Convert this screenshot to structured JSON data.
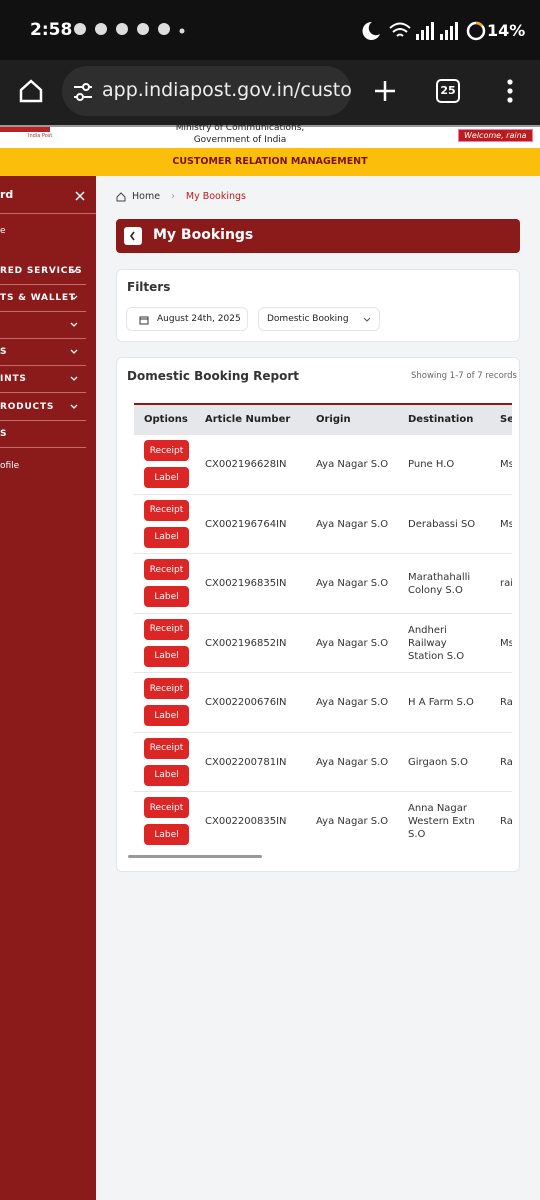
{
  "status_bar": {
    "time": "2:58",
    "battery": "14%"
  },
  "browser": {
    "url": "app.indiapost.gov.in/custome",
    "tab_count": "25"
  },
  "header": {
    "logo_text": "India Post",
    "ministry_line1": "Ministry of Communications,",
    "ministry_line2": "Government of India",
    "welcome": "Welcome, raina",
    "banner": "CUSTOMER RELATION MANAGEMENT"
  },
  "sidebar": {
    "items": [
      "rd",
      "e",
      "RED SERVICES",
      "TS & WALLET",
      "S",
      "INTS",
      "RODUCTS",
      "S",
      "ofile"
    ]
  },
  "breadcrumb": {
    "home": "Home",
    "current": "My Bookings"
  },
  "page_title": "My Bookings",
  "filters": {
    "title": "Filters",
    "date": "August 24th, 2025",
    "booking_type": "Domestic Booking"
  },
  "report": {
    "title": "Domestic Booking Report",
    "summary": "Showing 1-7 of 7 records",
    "columns": [
      "Options",
      "Article Number",
      "Origin",
      "Destination",
      "Se"
    ],
    "buttons": [
      "Receipt",
      "Label"
    ],
    "rows": [
      [
        "CX002196628IN",
        "Aya Nagar S.O",
        "Pune H.O",
        "Ms"
      ],
      [
        "CX002196764IN",
        "Aya Nagar S.O",
        "Derabassi SO",
        "Ms"
      ],
      [
        "CX002196835IN",
        "Aya Nagar S.O",
        "Marathahalli Colony S.O",
        "rai"
      ],
      [
        "CX002196852IN",
        "Aya Nagar S.O",
        "Andheri Railway Station S.O",
        "Ms"
      ],
      [
        "CX002200676IN",
        "Aya Nagar S.O",
        "H A Farm S.O",
        "Ra"
      ],
      [
        "CX002200781IN",
        "Aya Nagar S.O",
        "Girgaon S.O",
        "Ra"
      ],
      [
        "CX002200835IN",
        "Aya Nagar S.O",
        "Anna Nagar Western Extn S.O",
        "Ra"
      ]
    ]
  }
}
